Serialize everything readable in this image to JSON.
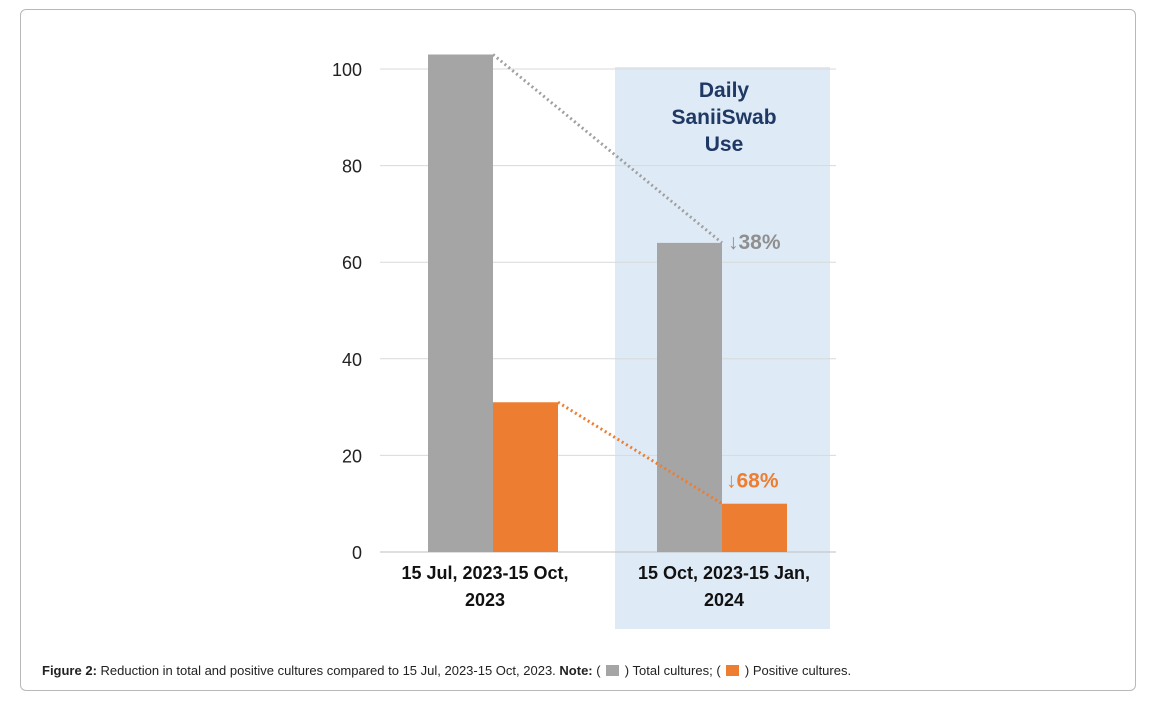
{
  "chart_data": {
    "type": "bar",
    "categories": [
      "15 Jul, 2023-15 Oct, 2023",
      "15 Oct, 2023-15 Jan, 2024"
    ],
    "category_lines": [
      [
        "15 Jul, 2023-15 Oct,",
        "2023"
      ],
      [
        "15 Oct, 2023-15 Jan,",
        "2024"
      ]
    ],
    "series": [
      {
        "name": "Total cultures",
        "values": [
          103,
          64
        ],
        "color": "#a5a5a5"
      },
      {
        "name": "Positive cultures",
        "values": [
          31,
          10
        ],
        "color": "#ed7d31"
      }
    ],
    "yticks": [
      0,
      20,
      40,
      60,
      80,
      100
    ],
    "ylim": [
      0,
      104
    ],
    "grid": true,
    "highlight": {
      "category_index": 1,
      "label_lines": [
        "Daily",
        "SaniiSwab",
        "Use"
      ],
      "color": "#deebf7"
    },
    "annotations": [
      {
        "text": "↓38%",
        "series_index": 0,
        "color": "#8f8f8f"
      },
      {
        "text": "↓68%",
        "series_index": 1,
        "color": "#ed7d31"
      }
    ]
  },
  "caption": {
    "figure_label": "Figure 2:",
    "text": " Reduction in total and positive cultures compared to 15 Jul, 2023-15 Oct, 2023. ",
    "note_label": "Note:",
    "legend_open": " ( ",
    "total_label": " ) Total cultures; ( ",
    "positive_label": " ) Positive cultures."
  }
}
